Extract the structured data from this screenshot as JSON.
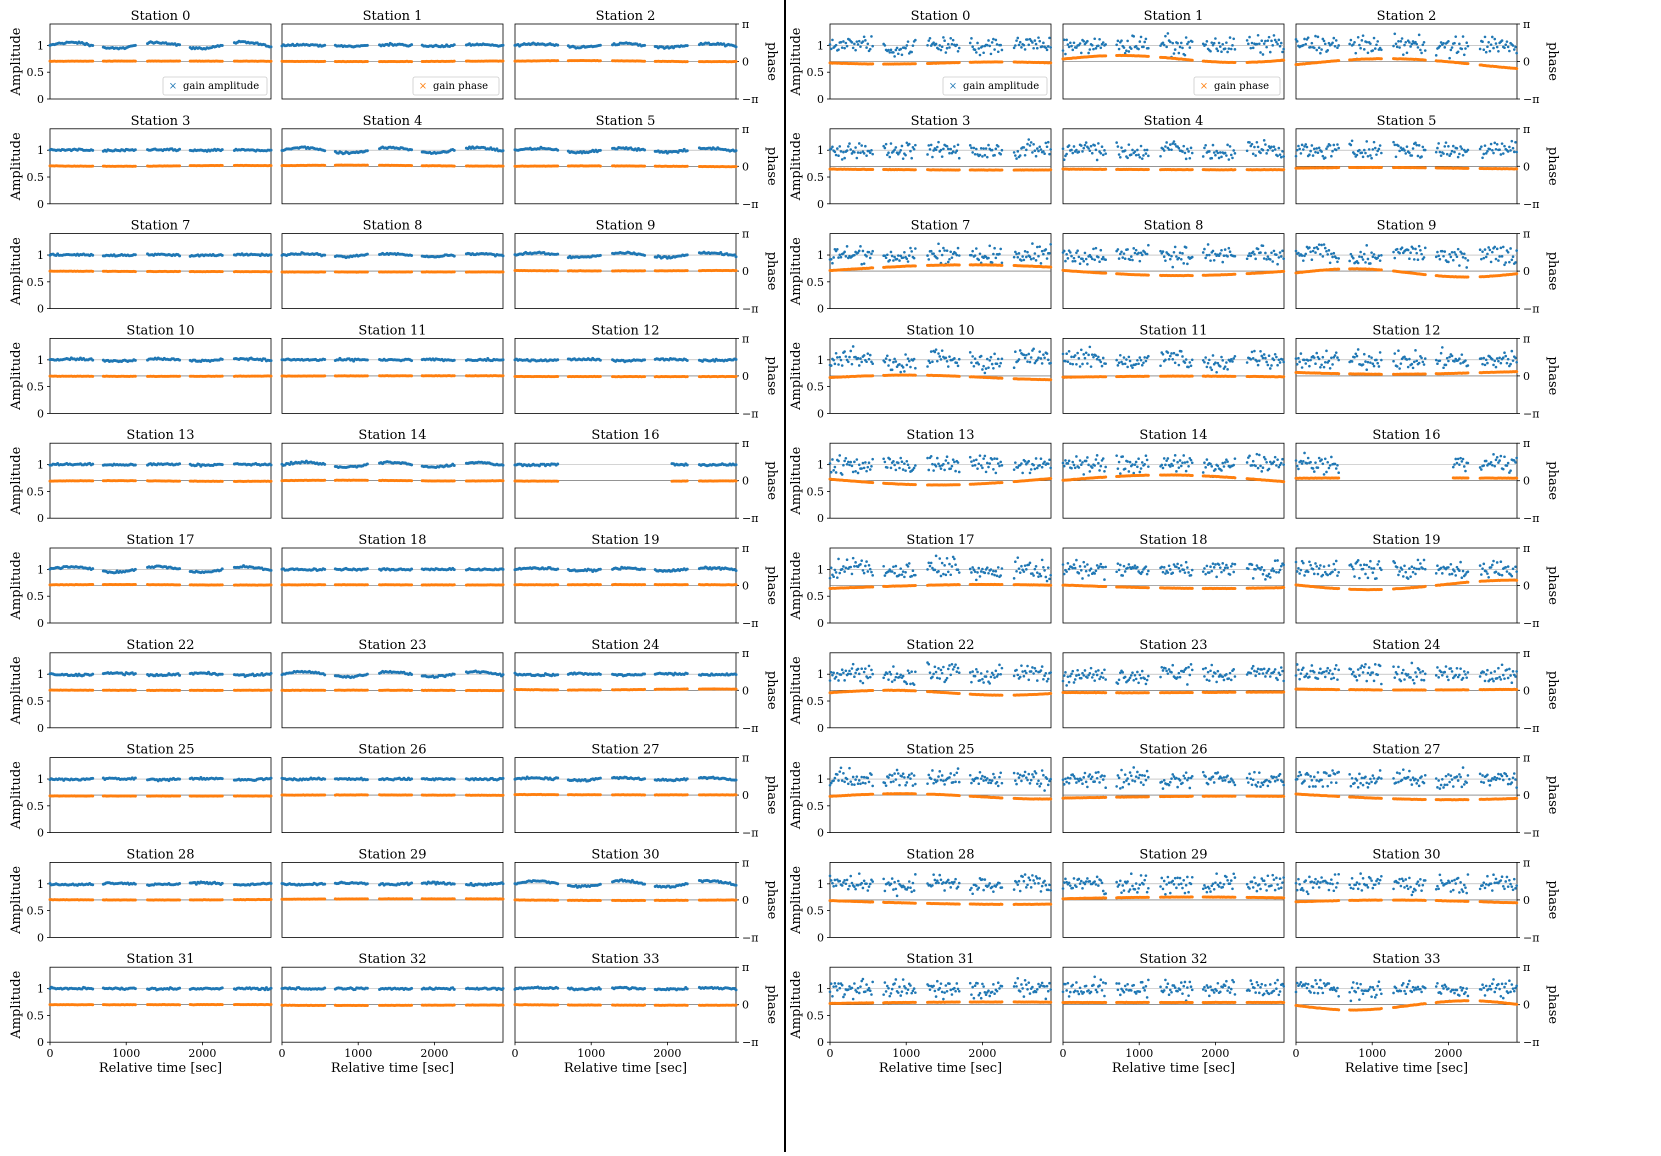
{
  "figure": {
    "divider_color": "#000000",
    "amplitude_color": "#1f77b4",
    "phase_color": "#ff7f0e",
    "reference_line_color": "#aaaaaa"
  },
  "chart_data": [
    {
      "type": "scatter",
      "panel": "left",
      "station_titles": [
        "Station 0",
        "Station 1",
        "Station 2",
        "Station 3",
        "Station 4",
        "Station 5",
        "Station 7",
        "Station 8",
        "Station 9",
        "Station 10",
        "Station 11",
        "Station 12",
        "Station 13",
        "Station 14",
        "Station 16",
        "Station 17",
        "Station 18",
        "Station 19",
        "Station 22",
        "Station 23",
        "Station 24",
        "Station 25",
        "Station 26",
        "Station 27",
        "Station 28",
        "Station 29",
        "Station 30",
        "Station 31",
        "Station 32",
        "Station 33"
      ],
      "xlabel": "Relative time [sec]",
      "ylabel": "Amplitude",
      "y2label": "phase",
      "xlim": [
        0,
        2900
      ],
      "xticks": [
        "0",
        "1000",
        "2000"
      ],
      "ylim": [
        0,
        1.4
      ],
      "yticks": [
        "0",
        "0.5",
        "1"
      ],
      "y2ticks": [
        "−π",
        "0",
        "π"
      ],
      "legend": [
        {
          "label": "gain amplitude",
          "subplot": 0,
          "position": "lower right",
          "marker": "x"
        },
        {
          "label": "gain phase",
          "subplot": 1,
          "position": "lower right",
          "marker": "x"
        }
      ],
      "gaps_sec": [
        [
          560,
          700
        ],
        [
          1130,
          1270
        ],
        [
          1700,
          1840
        ],
        [
          2270,
          2410
        ]
      ],
      "missing_interval_station_16": [
        580,
        2050
      ],
      "series": [
        {
          "name": "gain amplitude",
          "axis": "left",
          "amplitude_approx": 1.0,
          "spread_approx": 0.08
        },
        {
          "name": "gain phase",
          "axis": "right",
          "phase_approx_rad": 0.0,
          "spread_approx_rad": 0.25
        }
      ]
    },
    {
      "type": "scatter",
      "panel": "right",
      "station_titles": [
        "Station 0",
        "Station 1",
        "Station 2",
        "Station 3",
        "Station 4",
        "Station 5",
        "Station 7",
        "Station 8",
        "Station 9",
        "Station 10",
        "Station 11",
        "Station 12",
        "Station 13",
        "Station 14",
        "Station 16",
        "Station 17",
        "Station 18",
        "Station 19",
        "Station 22",
        "Station 23",
        "Station 24",
        "Station 25",
        "Station 26",
        "Station 27",
        "Station 28",
        "Station 29",
        "Station 30",
        "Station 31",
        "Station 32",
        "Station 33"
      ],
      "xlabel": "Relative time [sec]",
      "ylabel": "Amplitude",
      "y2label": "phase",
      "xlim": [
        0,
        2900
      ],
      "xticks": [
        "0",
        "1000",
        "2000"
      ],
      "ylim": [
        0,
        1.4
      ],
      "yticks": [
        "0",
        "0.5",
        "1"
      ],
      "y2ticks": [
        "−π",
        "0",
        "π"
      ],
      "legend": [
        {
          "label": "gain amplitude",
          "subplot": 0,
          "position": "lower right",
          "marker": "x"
        },
        {
          "label": "gain phase",
          "subplot": 1,
          "position": "lower right",
          "marker": "x"
        }
      ],
      "gaps_sec": [
        [
          560,
          700
        ],
        [
          1130,
          1270
        ],
        [
          1700,
          1840
        ],
        [
          2270,
          2410
        ]
      ],
      "missing_interval_station_16": [
        580,
        2050
      ],
      "series": [
        {
          "name": "gain amplitude",
          "axis": "left",
          "amplitude_approx": 1.0,
          "spread_approx": 0.25
        },
        {
          "name": "gain phase",
          "axis": "right",
          "phase_approx_rad": 0.0,
          "spread_approx_rad": 0.9
        }
      ]
    }
  ]
}
